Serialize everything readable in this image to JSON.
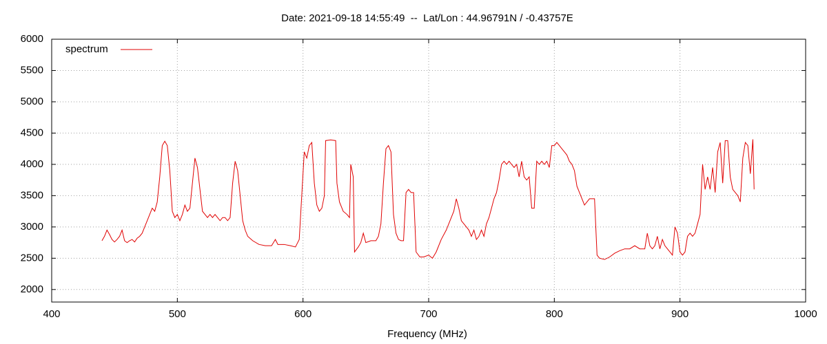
{
  "chart_data": {
    "type": "line",
    "title": "Date: 2021-09-18 14:55:49  --  Lat/Lon : 44.96791N / -0.43757E",
    "xlabel": "Frequency (MHz)",
    "xlim": [
      400,
      1000
    ],
    "xticks": [
      400,
      500,
      600,
      700,
      800,
      900,
      1000
    ],
    "ylim": [
      1800,
      6000
    ],
    "yticks": [
      2000,
      2500,
      3000,
      3500,
      4000,
      4500,
      5000,
      5500,
      6000
    ],
    "grid": true,
    "legend": "top-left",
    "x": [
      440,
      442,
      444,
      446,
      448,
      450,
      452,
      454,
      456,
      458,
      460,
      462,
      464,
      466,
      468,
      470,
      472,
      474,
      476,
      478,
      480,
      482,
      484,
      486,
      488,
      490,
      492,
      494,
      496,
      498,
      500,
      502,
      504,
      506,
      508,
      510,
      512,
      514,
      516,
      518,
      520,
      522,
      524,
      526,
      528,
      530,
      532,
      534,
      536,
      538,
      540,
      542,
      544,
      546,
      548,
      550,
      552,
      554,
      556,
      560,
      565,
      570,
      575,
      578,
      580,
      585,
      590,
      594,
      597,
      599,
      601,
      603,
      605,
      607,
      609,
      611,
      613,
      615,
      617,
      618,
      622,
      626,
      627,
      629,
      632,
      635,
      637,
      638,
      640,
      641,
      644,
      646,
      648,
      650,
      654,
      658,
      660,
      662,
      664,
      666,
      668,
      670,
      672,
      674,
      676,
      678,
      680,
      682,
      684,
      686,
      688,
      690,
      693,
      696,
      700,
      703,
      706,
      710,
      714,
      718,
      720,
      722,
      724,
      726,
      728,
      730,
      732,
      734,
      736,
      738,
      740,
      742,
      744,
      746,
      748,
      750,
      752,
      754,
      756,
      758,
      760,
      762,
      764,
      766,
      768,
      770,
      772,
      774,
      776,
      778,
      780,
      782,
      784,
      786,
      788,
      790,
      792,
      794,
      796,
      798,
      800,
      802,
      804,
      806,
      808,
      810,
      812,
      814,
      816,
      818,
      820,
      822,
      824,
      826,
      828,
      830,
      832,
      834,
      836,
      840,
      844,
      848,
      852,
      856,
      860,
      864,
      868,
      872,
      874,
      876,
      878,
      880,
      882,
      884,
      886,
      888,
      890,
      892,
      894,
      896,
      898,
      900,
      902,
      904,
      906,
      908,
      910,
      912,
      914,
      916,
      918,
      920,
      922,
      924,
      926,
      928,
      930,
      932,
      934,
      936,
      938,
      940,
      942,
      944,
      946,
      948,
      950,
      952,
      954,
      956,
      958,
      959
    ],
    "series": [
      {
        "name": "spectrum",
        "color": "#e00000",
        "values": [
          2780,
          2850,
          2950,
          2880,
          2800,
          2760,
          2800,
          2850,
          2950,
          2780,
          2750,
          2780,
          2800,
          2760,
          2820,
          2850,
          2900,
          3000,
          3100,
          3200,
          3300,
          3250,
          3400,
          3800,
          4300,
          4370,
          4300,
          3900,
          3250,
          3150,
          3200,
          3100,
          3200,
          3350,
          3250,
          3300,
          3700,
          4100,
          3950,
          3600,
          3250,
          3200,
          3150,
          3200,
          3150,
          3200,
          3150,
          3100,
          3150,
          3150,
          3100,
          3150,
          3700,
          4050,
          3900,
          3500,
          3100,
          2950,
          2850,
          2780,
          2720,
          2700,
          2700,
          2800,
          2720,
          2720,
          2700,
          2680,
          2800,
          3500,
          4200,
          4100,
          4300,
          4350,
          3700,
          3350,
          3250,
          3300,
          3500,
          4380,
          4390,
          4380,
          3700,
          3400,
          3250,
          3200,
          3150,
          4000,
          3800,
          2600,
          2680,
          2750,
          2900,
          2750,
          2780,
          2780,
          2850,
          3050,
          3700,
          4250,
          4300,
          4200,
          3200,
          2900,
          2800,
          2780,
          2780,
          3550,
          3600,
          3550,
          3550,
          2600,
          2520,
          2520,
          2550,
          2500,
          2600,
          2800,
          2950,
          3150,
          3250,
          3450,
          3300,
          3100,
          3050,
          3000,
          2950,
          2850,
          2950,
          2800,
          2850,
          2950,
          2850,
          3050,
          3150,
          3300,
          3450,
          3550,
          3750,
          4000,
          4050,
          4000,
          4050,
          4000,
          3950,
          4000,
          3800,
          4050,
          3800,
          3750,
          3800,
          3300,
          3300,
          4050,
          4000,
          4050,
          4000,
          4050,
          3950,
          4300,
          4300,
          4350,
          4300,
          4250,
          4200,
          4150,
          4050,
          4000,
          3900,
          3650,
          3550,
          3450,
          3350,
          3400,
          3450,
          3450,
          3450,
          2550,
          2500,
          2480,
          2520,
          2580,
          2620,
          2650,
          2650,
          2700,
          2650,
          2650,
          2900,
          2700,
          2650,
          2700,
          2850,
          2650,
          2800,
          2700,
          2650,
          2600,
          2550,
          3000,
          2900,
          2600,
          2550,
          2600,
          2850,
          2900,
          2850,
          2900,
          3050,
          3200,
          4000,
          3600,
          3800,
          3600,
          3950,
          3550,
          4200,
          4350,
          3700,
          4380,
          4380,
          3800,
          3600,
          3550,
          3500,
          3400,
          4100,
          4350,
          4300,
          3850,
          4400,
          3600
        ]
      }
    ]
  }
}
